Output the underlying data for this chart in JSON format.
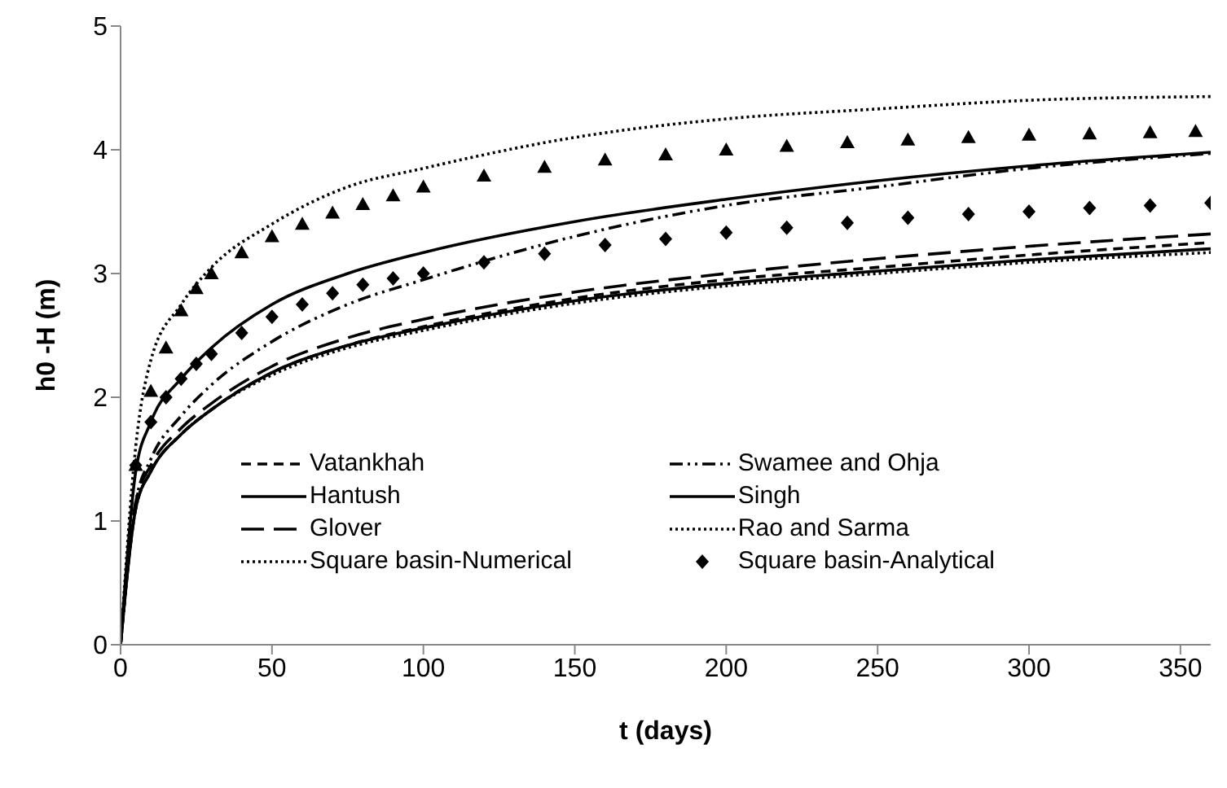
{
  "chart_data": {
    "type": "line",
    "xlabel": "t (days)",
    "ylabel": "h0 -H (m)",
    "x": [
      0,
      5,
      10,
      20,
      30,
      50,
      75,
      100,
      150,
      200,
      250,
      300,
      360
    ],
    "xlim": [
      0,
      360
    ],
    "xticks": [
      0,
      50,
      100,
      150,
      200,
      250,
      300,
      350
    ],
    "ylim": [
      0,
      5
    ],
    "yticks": [
      0,
      1,
      2,
      3,
      4,
      5
    ],
    "grid": false,
    "legend": "bottom",
    "marker": "none",
    "series": [
      {
        "name": "Vatankhah",
        "color": "#000000",
        "line_style": "dashed",
        "values": [
          0,
          1.1,
          1.4,
          1.7,
          1.9,
          2.2,
          2.42,
          2.57,
          2.8,
          2.95,
          3.05,
          3.15,
          3.25
        ]
      },
      {
        "name": "Swamee and Ohja",
        "color": "#000000",
        "line_style": "dashdot",
        "values": [
          0,
          1.15,
          1.5,
          1.85,
          2.1,
          2.45,
          2.75,
          2.95,
          3.3,
          3.55,
          3.7,
          3.85,
          3.97
        ]
      },
      {
        "name": "Hantush",
        "color": "#000000",
        "line_style": "solid",
        "values": [
          0,
          1.1,
          1.4,
          1.7,
          1.9,
          2.2,
          2.42,
          2.56,
          2.78,
          2.92,
          3.02,
          3.11,
          3.2
        ]
      },
      {
        "name": "Singh",
        "color": "#000000",
        "line_style": "solid",
        "values": [
          0,
          1.4,
          1.8,
          2.15,
          2.4,
          2.75,
          3.0,
          3.17,
          3.42,
          3.6,
          3.75,
          3.87,
          3.98
        ]
      },
      {
        "name": "Glover",
        "color": "#000000",
        "line_style": "longdash",
        "values": [
          0,
          1.15,
          1.45,
          1.75,
          1.95,
          2.25,
          2.48,
          2.63,
          2.85,
          3.0,
          3.12,
          3.22,
          3.32
        ]
      },
      {
        "name": "Rao and Sarma",
        "color": "#000000",
        "line_style": "dotted",
        "values": [
          0,
          1.1,
          1.4,
          1.7,
          1.9,
          2.18,
          2.4,
          2.54,
          2.76,
          2.9,
          3.0,
          3.09,
          3.17
        ]
      },
      {
        "name": "Square basin-Numerical",
        "color": "#000000",
        "line_style": "dotted",
        "values": [
          0,
          1.6,
          2.3,
          2.75,
          3.05,
          3.4,
          3.7,
          3.85,
          4.1,
          4.25,
          4.33,
          4.4,
          4.43
        ]
      },
      {
        "name": "Square basin-Analytical",
        "type": "scatter",
        "marker": "diamond",
        "color": "#000000",
        "x": [
          5,
          10,
          15,
          20,
          25,
          30,
          40,
          50,
          60,
          70,
          80,
          90,
          100,
          120,
          140,
          160,
          180,
          200,
          220,
          240,
          260,
          280,
          300,
          320,
          340,
          360
        ],
        "values": [
          1.45,
          1.8,
          2.0,
          2.15,
          2.27,
          2.35,
          2.52,
          2.65,
          2.75,
          2.84,
          2.91,
          2.96,
          3.0,
          3.09,
          3.16,
          3.23,
          3.28,
          3.33,
          3.37,
          3.41,
          3.45,
          3.48,
          3.5,
          3.53,
          3.55,
          3.57
        ]
      },
      {
        "type": "scatter",
        "marker": "triangle",
        "color": "#000000",
        "x": [
          5,
          10,
          15,
          20,
          25,
          30,
          40,
          50,
          60,
          70,
          80,
          90,
          100,
          120,
          140,
          160,
          180,
          200,
          220,
          240,
          260,
          280,
          300,
          320,
          340,
          355
        ],
        "values": [
          1.45,
          2.05,
          2.4,
          2.7,
          2.88,
          3.0,
          3.17,
          3.3,
          3.4,
          3.49,
          3.56,
          3.63,
          3.7,
          3.79,
          3.86,
          3.92,
          3.96,
          4.0,
          4.03,
          4.06,
          4.08,
          4.1,
          4.12,
          4.13,
          4.14,
          4.15
        ]
      }
    ]
  }
}
